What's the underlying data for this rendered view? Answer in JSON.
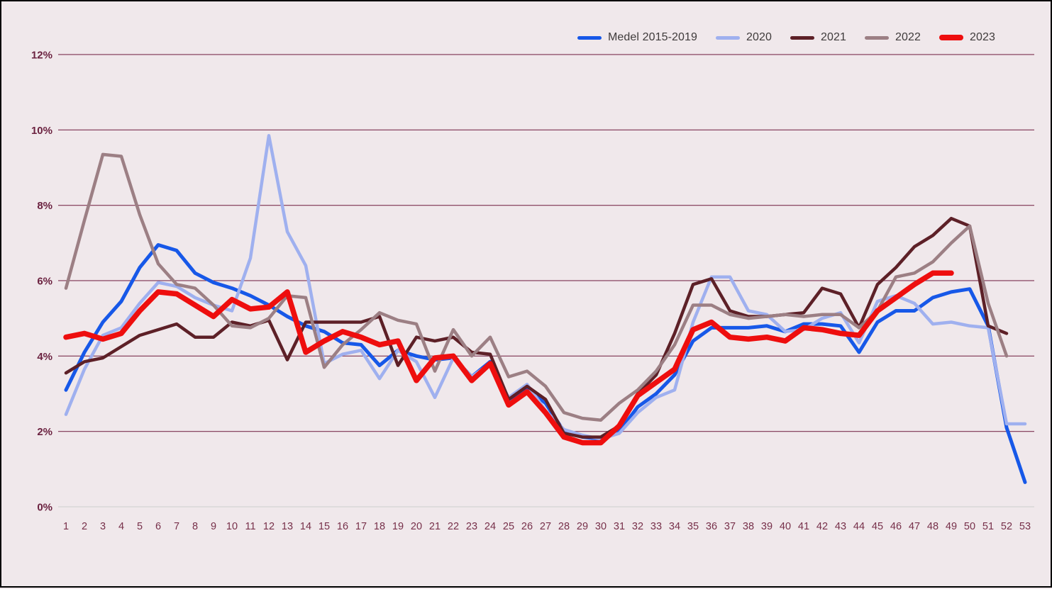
{
  "colors": {
    "background": "#f0e8eb",
    "border": "#000000",
    "gridline": "#7d3150",
    "zero_axis": "#d8d8d8",
    "y_label": "#6b2240",
    "x_label": "#77304a",
    "legend_text": "#3f3b3b"
  },
  "chart_data": {
    "type": "line",
    "title": "",
    "xlabel": "",
    "ylabel": "",
    "ylim": [
      0,
      12
    ],
    "grid": "horizontal",
    "legend_position": "top-right",
    "y_ticks": [
      {
        "value": 0,
        "label": "0%"
      },
      {
        "value": 2,
        "label": "2%"
      },
      {
        "value": 4,
        "label": "4%"
      },
      {
        "value": 6,
        "label": "6%"
      },
      {
        "value": 8,
        "label": "8%"
      },
      {
        "value": 10,
        "label": "10%"
      },
      {
        "value": 12,
        "label": "12%"
      }
    ],
    "categories": [
      1,
      2,
      3,
      4,
      5,
      6,
      7,
      8,
      9,
      10,
      11,
      12,
      13,
      14,
      15,
      16,
      17,
      18,
      19,
      20,
      21,
      22,
      23,
      24,
      25,
      26,
      27,
      28,
      29,
      30,
      31,
      32,
      33,
      34,
      35,
      36,
      37,
      38,
      39,
      40,
      41,
      42,
      43,
      44,
      45,
      46,
      47,
      48,
      49,
      50,
      51,
      52,
      53
    ],
    "series": [
      {
        "name": "Medel 2015-2019",
        "color": "#1758e8",
        "stroke_width": 5,
        "values": [
          3.1,
          4.1,
          4.9,
          5.45,
          6.35,
          6.95,
          6.8,
          6.2,
          5.95,
          5.8,
          5.6,
          5.35,
          5.05,
          4.8,
          4.65,
          4.35,
          4.3,
          3.75,
          4.15,
          4.0,
          3.9,
          3.95,
          3.45,
          3.85,
          2.85,
          3.15,
          2.75,
          2.0,
          1.85,
          1.8,
          2.0,
          2.65,
          3.0,
          3.5,
          4.4,
          4.75,
          4.75,
          4.75,
          4.8,
          4.65,
          4.85,
          4.85,
          4.8,
          4.1,
          4.9,
          5.2,
          5.2,
          5.55,
          5.7,
          5.78,
          4.8,
          2.1,
          0.65
        ]
      },
      {
        "name": "2020",
        "color": "#9fb0ef",
        "stroke_width": 4.5,
        "values": [
          2.45,
          3.65,
          4.55,
          4.75,
          5.4,
          5.95,
          5.85,
          5.55,
          5.35,
          5.2,
          6.6,
          9.85,
          7.3,
          6.4,
          3.8,
          4.05,
          4.15,
          3.4,
          4.15,
          3.85,
          2.9,
          3.95,
          3.45,
          3.8,
          2.9,
          3.25,
          2.55,
          2.05,
          1.9,
          1.8,
          1.95,
          2.5,
          2.9,
          3.1,
          4.9,
          6.1,
          6.1,
          5.2,
          5.1,
          4.65,
          4.7,
          5.0,
          5.15,
          4.35,
          5.45,
          5.6,
          5.4,
          4.85,
          4.9,
          4.8,
          4.75,
          2.2,
          2.2
        ]
      },
      {
        "name": "2021",
        "color": "#5d2027",
        "stroke_width": 4.5,
        "values": [
          3.55,
          3.85,
          3.95,
          4.25,
          4.55,
          4.7,
          4.85,
          4.5,
          4.5,
          4.9,
          4.8,
          4.95,
          3.9,
          4.9,
          4.9,
          4.9,
          4.9,
          5.05,
          3.75,
          4.5,
          4.4,
          4.5,
          4.1,
          4.05,
          2.85,
          3.2,
          2.85,
          1.95,
          1.85,
          1.85,
          2.15,
          3.0,
          3.5,
          4.6,
          5.9,
          6.05,
          5.2,
          5.05,
          5.05,
          5.1,
          5.15,
          5.8,
          5.65,
          4.75,
          5.9,
          6.35,
          6.9,
          7.2,
          7.65,
          7.45,
          4.8,
          4.6
        ]
      },
      {
        "name": "2022",
        "color": "#9c7f84",
        "stroke_width": 4.5,
        "values": [
          5.8,
          7.6,
          9.35,
          9.3,
          7.75,
          6.45,
          5.9,
          5.8,
          5.35,
          4.8,
          4.75,
          5.0,
          5.6,
          5.55,
          3.7,
          4.3,
          4.7,
          5.15,
          4.95,
          4.85,
          3.6,
          4.7,
          4.0,
          4.5,
          3.45,
          3.6,
          3.2,
          2.5,
          2.35,
          2.3,
          2.75,
          3.1,
          3.6,
          4.3,
          5.35,
          5.35,
          5.1,
          5.0,
          5.05,
          5.1,
          5.05,
          5.1,
          5.1,
          4.75,
          5.2,
          6.1,
          6.2,
          6.5,
          7.0,
          7.45,
          5.4,
          4.0
        ]
      },
      {
        "name": "2023",
        "color": "#ee0e0e",
        "stroke_width": 7.5,
        "values": [
          4.5,
          4.6,
          4.45,
          4.6,
          5.2,
          5.7,
          5.65,
          5.35,
          5.05,
          5.5,
          5.25,
          5.3,
          5.7,
          4.1,
          4.4,
          4.65,
          4.5,
          4.3,
          4.4,
          3.35,
          3.95,
          4.0,
          3.35,
          3.8,
          2.7,
          3.05,
          2.5,
          1.85,
          1.7,
          1.7,
          2.15,
          2.95,
          3.3,
          3.65,
          4.7,
          4.9,
          4.5,
          4.45,
          4.5,
          4.4,
          4.75,
          4.7,
          4.6,
          4.55,
          5.2,
          5.55,
          5.9,
          6.2,
          6.2
        ]
      }
    ]
  },
  "legend": {
    "items": [
      "Medel 2015-2019",
      "2020",
      "2021",
      "2022",
      "2023"
    ]
  }
}
